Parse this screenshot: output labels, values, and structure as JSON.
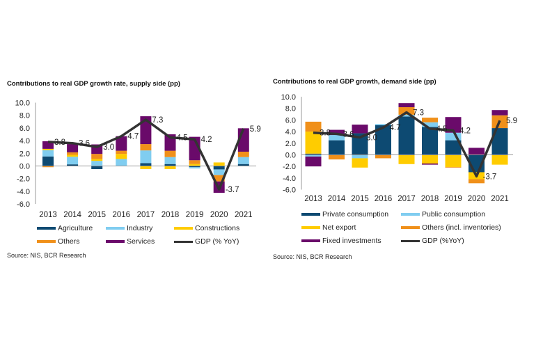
{
  "chart_data": [
    {
      "type": "bar",
      "stacked": true,
      "title": "Contributions to real GDP growth rate, supply side (pp)",
      "source": "Source: NIS, BCR Research",
      "categories": [
        "2013",
        "2014",
        "2015",
        "2016",
        "2017",
        "2018",
        "2019",
        "2020",
        "2021"
      ],
      "ylim": [
        -6,
        10
      ],
      "yticks": [
        "10.0",
        "8.0",
        "6.0",
        "4.0",
        "2.0",
        "0.0",
        "-2.0",
        "-4.0",
        "-6.0"
      ],
      "grid": false,
      "legend_position": "bottom",
      "series": [
        {
          "name": "Agriculture",
          "color": "#0d4a72",
          "values": [
            1.5,
            0.25,
            -0.5,
            0.0,
            0.45,
            0.3,
            -0.2,
            -0.55,
            0.3
          ]
        },
        {
          "name": "Industry",
          "color": "#80cdf0",
          "values": [
            1.0,
            1.2,
            0.8,
            1.1,
            2.0,
            1.1,
            -0.2,
            -0.9,
            1.1
          ]
        },
        {
          "name": "Constructions",
          "color": "#ffcc00",
          "values": [
            0.2,
            0.3,
            0.3,
            0.8,
            -0.5,
            -0.5,
            0.3,
            0.55,
            0.0
          ]
        },
        {
          "name": "Others",
          "color": "#f0901a",
          "values": [
            -0.2,
            0.4,
            0.8,
            0.5,
            1.0,
            1.0,
            0.6,
            -1.0,
            0.85
          ]
        },
        {
          "name": "Services",
          "color": "#6a0a6a",
          "values": [
            1.2,
            1.3,
            1.5,
            2.3,
            4.4,
            2.6,
            3.7,
            -1.8,
            3.7
          ]
        }
      ],
      "line": {
        "name": "GDP (% YoY)",
        "color": "#333333",
        "values": [
          3.8,
          3.6,
          3.0,
          4.7,
          7.3,
          4.5,
          4.2,
          -3.7,
          5.9
        ],
        "labels": [
          "3.8",
          "3.6",
          "3.0",
          "4.7",
          "7.3",
          "4.5",
          "4.2",
          "-3.7",
          "5.9"
        ]
      }
    },
    {
      "type": "bar",
      "stacked": true,
      "title": "Contributions to real GDP growth, demand side (pp)",
      "source": "Source: NIS, BCR Research",
      "categories": [
        "2013",
        "2014",
        "2015",
        "2016",
        "2017",
        "2018",
        "2019",
        "2020",
        "2021"
      ],
      "ylim": [
        -6,
        10
      ],
      "yticks": [
        "10.0",
        "8.0",
        "6.0",
        "4.0",
        "2.0",
        "0.0",
        "-2.0",
        "-4.0",
        "-6.0"
      ],
      "grid": false,
      "legend_position": "bottom",
      "series": [
        {
          "name": "Private consumption",
          "color": "#0d4a72",
          "values": [
            0.2,
            2.5,
            3.7,
            5.1,
            6.6,
            4.8,
            2.5,
            -3.0,
            4.6
          ]
        },
        {
          "name": "Public consumption",
          "color": "#80cdf0",
          "values": [
            -0.3,
            0.9,
            -0.6,
            0.2,
            0.3,
            0.8,
            1.3,
            0.0,
            0.0
          ]
        },
        {
          "name": "Net export",
          "color": "#ffcc00",
          "values": [
            3.8,
            0.0,
            -1.6,
            0.0,
            -1.6,
            -1.5,
            -2.1,
            -1.2,
            -1.7
          ]
        },
        {
          "name": "Others (incl. inventories)",
          "color": "#f0901a",
          "values": [
            1.7,
            -0.8,
            0.0,
            -0.6,
            1.3,
            0.8,
            -0.1,
            -0.7,
            2.2
          ]
        },
        {
          "name": "Fixed investments",
          "color": "#6a0a6a",
          "values": [
            -1.7,
            0.9,
            1.5,
            0.0,
            0.7,
            -0.2,
            2.7,
            1.2,
            0.9
          ]
        }
      ],
      "line": {
        "name": "GDP (%YoY)",
        "color": "#333333",
        "values": [
          3.8,
          3.6,
          3.0,
          4.7,
          7.3,
          4.5,
          4.2,
          -3.7,
          5.9
        ],
        "labels": [
          "3.8",
          "3.6",
          "3.0",
          "4.7",
          "7.3",
          "4.5",
          "4.2",
          "-3.7",
          "5.9"
        ]
      }
    }
  ]
}
